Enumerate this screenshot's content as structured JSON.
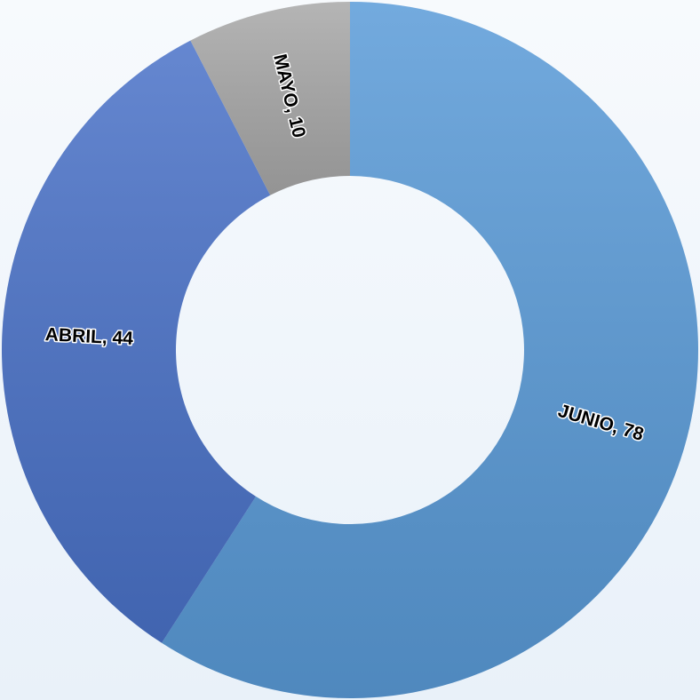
{
  "chart_data": {
    "type": "donut",
    "categories": [
      "JUNIO",
      "ABRIL",
      "MAYO"
    ],
    "values": [
      78,
      44,
      10
    ],
    "value_labels": [
      "JUNIO, 78",
      "ABRIL, 44",
      "MAYO, 10"
    ],
    "colors": [
      "#5a9bd8",
      "#4a72c8",
      "#a8a8a8"
    ]
  }
}
